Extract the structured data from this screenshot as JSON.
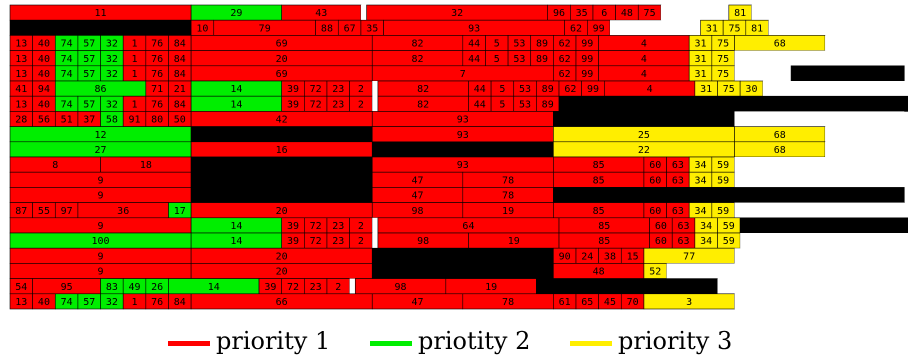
{
  "chart_data": {
    "type": "heatmap",
    "title": "",
    "xlabel": "",
    "ylabel": "",
    "colors": {
      "1": "#ff0000",
      "2": "#00ee00",
      "3": "#ffee00",
      "black": "#000000",
      "empty": "#ffffff"
    },
    "legend": [
      {
        "label": "priority 1",
        "color": "#ff0000"
      },
      {
        "label": "priotity 2",
        "color": "#00ee00"
      },
      {
        "label": "priority 3",
        "color": "#ffee00"
      }
    ],
    "rows": [
      [
        [
          "1",
          16,
          "11"
        ],
        [
          "2",
          8,
          "29"
        ],
        [
          "1",
          7,
          "43"
        ],
        [
          "w",
          0.5,
          ""
        ],
        [
          "1",
          16,
          "32"
        ],
        [
          "1",
          2,
          "96"
        ],
        [
          "1",
          2,
          "35"
        ],
        [
          "1",
          2,
          "6"
        ],
        [
          "1",
          2,
          "48"
        ],
        [
          "1",
          2,
          "75"
        ],
        [
          "w",
          6,
          ""
        ],
        [
          "3",
          2,
          "81"
        ],
        [
          "w",
          15,
          ""
        ]
      ],
      [
        [
          "k",
          16,
          ""
        ],
        [
          "1",
          2,
          "10"
        ],
        [
          "1",
          9,
          "79"
        ],
        [
          "1",
          2,
          "88"
        ],
        [
          "1",
          2,
          "67"
        ],
        [
          "1",
          2,
          "35"
        ],
        [
          "1",
          16,
          "93"
        ],
        [
          "1",
          2,
          "62"
        ],
        [
          "1",
          2,
          "99"
        ],
        [
          "w",
          8,
          ""
        ],
        [
          "3",
          2,
          "31"
        ],
        [
          "3",
          2,
          "75"
        ],
        [
          "3",
          2,
          "81"
        ],
        [
          "w",
          15,
          ""
        ]
      ],
      [
        [
          "1",
          2,
          "13"
        ],
        [
          "1",
          2,
          "40"
        ],
        [
          "2",
          2,
          "74"
        ],
        [
          "2",
          2,
          "57"
        ],
        [
          "2",
          2,
          "32"
        ],
        [
          "1",
          2,
          "1"
        ],
        [
          "1",
          2,
          "76"
        ],
        [
          "1",
          2,
          "84"
        ],
        [
          "1",
          16,
          "69"
        ],
        [
          "1",
          8,
          "82"
        ],
        [
          "1",
          2,
          "44"
        ],
        [
          "1",
          2,
          "5"
        ],
        [
          "1",
          2,
          "53"
        ],
        [
          "1",
          2,
          "89"
        ],
        [
          "1",
          2,
          "62"
        ],
        [
          "1",
          2,
          "99"
        ],
        [
          "1",
          8,
          "4"
        ],
        [
          "3",
          2,
          "31"
        ],
        [
          "3",
          2,
          "75"
        ],
        [
          "3",
          8,
          "68"
        ],
        [
          "w",
          7,
          ""
        ]
      ],
      [
        [
          "1",
          2,
          "13"
        ],
        [
          "1",
          2,
          "40"
        ],
        [
          "2",
          2,
          "74"
        ],
        [
          "2",
          2,
          "57"
        ],
        [
          "2",
          2,
          "32"
        ],
        [
          "1",
          2,
          "1"
        ],
        [
          "1",
          2,
          "76"
        ],
        [
          "1",
          2,
          "84"
        ],
        [
          "1",
          16,
          "20"
        ],
        [
          "1",
          8,
          "82"
        ],
        [
          "1",
          2,
          "44"
        ],
        [
          "1",
          2,
          "5"
        ],
        [
          "1",
          2,
          "53"
        ],
        [
          "1",
          2,
          "89"
        ],
        [
          "1",
          2,
          "62"
        ],
        [
          "1",
          2,
          "99"
        ],
        [
          "1",
          8,
          "4"
        ],
        [
          "3",
          2,
          "31"
        ],
        [
          "3",
          2,
          "75"
        ],
        [
          "w",
          15,
          ""
        ]
      ],
      [
        [
          "1",
          2,
          "13"
        ],
        [
          "1",
          2,
          "40"
        ],
        [
          "2",
          2,
          "74"
        ],
        [
          "2",
          2,
          "57"
        ],
        [
          "2",
          2,
          "32"
        ],
        [
          "1",
          2,
          "1"
        ],
        [
          "1",
          2,
          "76"
        ],
        [
          "1",
          2,
          "84"
        ],
        [
          "1",
          16,
          "69"
        ],
        [
          "1",
          16,
          "7"
        ],
        [
          "1",
          2,
          "62"
        ],
        [
          "1",
          2,
          "99"
        ],
        [
          "1",
          8,
          "4"
        ],
        [
          "3",
          2,
          "31"
        ],
        [
          "3",
          2,
          "75"
        ],
        [
          "w",
          5,
          ""
        ],
        [
          "k",
          10,
          ""
        ]
      ],
      [
        [
          "1",
          2,
          "41"
        ],
        [
          "1",
          2,
          "94"
        ],
        [
          "2",
          8,
          "86"
        ],
        [
          "1",
          2,
          "71"
        ],
        [
          "1",
          2,
          "21"
        ],
        [
          "2",
          8,
          "14"
        ],
        [
          "1",
          2,
          "39"
        ],
        [
          "1",
          2,
          "72"
        ],
        [
          "1",
          2,
          "23"
        ],
        [
          "1",
          2,
          "2"
        ],
        [
          "w",
          0.5,
          ""
        ],
        [
          "1",
          8,
          "82"
        ],
        [
          "1",
          2,
          "44"
        ],
        [
          "1",
          2,
          "5"
        ],
        [
          "1",
          2,
          "53"
        ],
        [
          "1",
          2,
          "89"
        ],
        [
          "1",
          2,
          "62"
        ],
        [
          "1",
          2,
          "99"
        ],
        [
          "1",
          8,
          "4"
        ],
        [
          "3",
          2,
          "31"
        ],
        [
          "3",
          2,
          "75"
        ],
        [
          "3",
          2,
          "30"
        ],
        [
          "w",
          13,
          ""
        ]
      ],
      [
        [
          "1",
          2,
          "13"
        ],
        [
          "1",
          2,
          "40"
        ],
        [
          "2",
          2,
          "74"
        ],
        [
          "2",
          2,
          "57"
        ],
        [
          "2",
          2,
          "32"
        ],
        [
          "1",
          2,
          "1"
        ],
        [
          "1",
          2,
          "76"
        ],
        [
          "1",
          2,
          "84"
        ],
        [
          "2",
          8,
          "14"
        ],
        [
          "1",
          2,
          "39"
        ],
        [
          "1",
          2,
          "72"
        ],
        [
          "1",
          2,
          "23"
        ],
        [
          "1",
          2,
          "2"
        ],
        [
          "w",
          0.5,
          ""
        ],
        [
          "1",
          8,
          "82"
        ],
        [
          "1",
          2,
          "44"
        ],
        [
          "1",
          2,
          "5"
        ],
        [
          "1",
          2,
          "53"
        ],
        [
          "1",
          2,
          "89"
        ],
        [
          "k",
          31,
          ""
        ]
      ],
      [
        [
          "1",
          2,
          "28"
        ],
        [
          "1",
          2,
          "56"
        ],
        [
          "1",
          2,
          "51"
        ],
        [
          "1",
          2,
          "37"
        ],
        [
          "2",
          2,
          "58"
        ],
        [
          "1",
          2,
          "91"
        ],
        [
          "1",
          2,
          "80"
        ],
        [
          "1",
          2,
          "50"
        ],
        [
          "1",
          16,
          "42"
        ],
        [
          "1",
          16,
          "93"
        ],
        [
          "k",
          16,
          ""
        ],
        [
          "w",
          15,
          ""
        ]
      ],
      [
        [
          "2",
          16,
          "12"
        ],
        [
          "k",
          16,
          ""
        ],
        [
          "1",
          16,
          "93"
        ],
        [
          "3",
          16,
          "25"
        ],
        [
          "3",
          8,
          "68"
        ],
        [
          "w",
          7,
          ""
        ]
      ],
      [
        [
          "2",
          16,
          "27"
        ],
        [
          "1",
          16,
          "16"
        ],
        [
          "k",
          16,
          ""
        ],
        [
          "3",
          16,
          "22"
        ],
        [
          "3",
          8,
          "68"
        ],
        [
          "w",
          7,
          ""
        ]
      ],
      [
        [
          "1",
          8,
          "8"
        ],
        [
          "1",
          8,
          "18"
        ],
        [
          "k",
          16,
          ""
        ],
        [
          "1",
          16,
          "93"
        ],
        [
          "1",
          8,
          "85"
        ],
        [
          "1",
          2,
          "60"
        ],
        [
          "1",
          2,
          "63"
        ],
        [
          "3",
          2,
          "34"
        ],
        [
          "3",
          2,
          "59"
        ],
        [
          "w",
          15,
          ""
        ]
      ],
      [
        [
          "1",
          16,
          "9"
        ],
        [
          "k",
          16,
          ""
        ],
        [
          "1",
          8,
          "47"
        ],
        [
          "1",
          8,
          "78"
        ],
        [
          "1",
          8,
          "85"
        ],
        [
          "1",
          2,
          "60"
        ],
        [
          "1",
          2,
          "63"
        ],
        [
          "3",
          2,
          "34"
        ],
        [
          "3",
          2,
          "59"
        ],
        [
          "w",
          15,
          ""
        ]
      ],
      [
        [
          "1",
          16,
          "9"
        ],
        [
          "k",
          16,
          ""
        ],
        [
          "1",
          8,
          "47"
        ],
        [
          "1",
          8,
          "78"
        ],
        [
          "k",
          31,
          ""
        ]
      ],
      [
        [
          "1",
          2,
          "87"
        ],
        [
          "1",
          2,
          "55"
        ],
        [
          "1",
          2,
          "97"
        ],
        [
          "1",
          8,
          "36"
        ],
        [
          "2",
          2,
          "17"
        ],
        [
          "1",
          16,
          "20"
        ],
        [
          "1",
          8,
          "98"
        ],
        [
          "1",
          8,
          "19"
        ],
        [
          "1",
          8,
          "85"
        ],
        [
          "1",
          2,
          "60"
        ],
        [
          "1",
          2,
          "63"
        ],
        [
          "3",
          2,
          "34"
        ],
        [
          "3",
          2,
          "59"
        ],
        [
          "w",
          15,
          ""
        ]
      ],
      [
        [
          "1",
          16,
          "9"
        ],
        [
          "2",
          8,
          "14"
        ],
        [
          "1",
          2,
          "39"
        ],
        [
          "1",
          2,
          "72"
        ],
        [
          "1",
          2,
          "23"
        ],
        [
          "1",
          2,
          "2"
        ],
        [
          "w",
          0.5,
          ""
        ],
        [
          "1",
          16,
          "64"
        ],
        [
          "1",
          8,
          "85"
        ],
        [
          "1",
          2,
          "60"
        ],
        [
          "1",
          2,
          "63"
        ],
        [
          "3",
          2,
          "34"
        ],
        [
          "3",
          2,
          "59"
        ],
        [
          "k",
          15,
          ""
        ]
      ],
      [
        [
          "2",
          16,
          "100"
        ],
        [
          "2",
          8,
          "14"
        ],
        [
          "1",
          2,
          "39"
        ],
        [
          "1",
          2,
          "72"
        ],
        [
          "1",
          2,
          "23"
        ],
        [
          "1",
          2,
          "2"
        ],
        [
          "w",
          0.5,
          ""
        ],
        [
          "1",
          8,
          "98"
        ],
        [
          "1",
          8,
          "19"
        ],
        [
          "1",
          8,
          "85"
        ],
        [
          "1",
          2,
          "60"
        ],
        [
          "1",
          2,
          "63"
        ],
        [
          "3",
          2,
          "34"
        ],
        [
          "3",
          2,
          "59"
        ],
        [
          "w",
          15,
          ""
        ]
      ],
      [
        [
          "1",
          16,
          "9"
        ],
        [
          "1",
          16,
          "20"
        ],
        [
          "k",
          16,
          ""
        ],
        [
          "1",
          2,
          "90"
        ],
        [
          "1",
          2,
          "24"
        ],
        [
          "1",
          2,
          "38"
        ],
        [
          "1",
          2,
          "15"
        ],
        [
          "3",
          8,
          "77"
        ],
        [
          "w",
          15,
          ""
        ]
      ],
      [
        [
          "1",
          16,
          "9"
        ],
        [
          "1",
          16,
          "20"
        ],
        [
          "k",
          16,
          ""
        ],
        [
          "1",
          8,
          "48"
        ],
        [
          "3",
          2,
          "52"
        ],
        [
          "w",
          21,
          ""
        ]
      ],
      [
        [
          "1",
          2,
          "54"
        ],
        [
          "1",
          6,
          "95"
        ],
        [
          "2",
          2,
          "83"
        ],
        [
          "2",
          2,
          "49"
        ],
        [
          "2",
          2,
          "26"
        ],
        [
          "2",
          8,
          "14"
        ],
        [
          "1",
          2,
          "39"
        ],
        [
          "1",
          2,
          "72"
        ],
        [
          "1",
          2,
          "23"
        ],
        [
          "1",
          2,
          "2"
        ],
        [
          "w",
          0.5,
          ""
        ],
        [
          "1",
          8,
          "98"
        ],
        [
          "1",
          8,
          "19"
        ],
        [
          "k",
          16,
          ""
        ],
        [
          "w",
          15,
          ""
        ]
      ],
      [
        [
          "1",
          2,
          "13"
        ],
        [
          "1",
          2,
          "40"
        ],
        [
          "2",
          2,
          "74"
        ],
        [
          "2",
          2,
          "57"
        ],
        [
          "2",
          2,
          "32"
        ],
        [
          "1",
          2,
          "1"
        ],
        [
          "1",
          2,
          "76"
        ],
        [
          "1",
          2,
          "84"
        ],
        [
          "1",
          16,
          "66"
        ],
        [
          "1",
          8,
          "47"
        ],
        [
          "1",
          8,
          "78"
        ],
        [
          "1",
          2,
          "61"
        ],
        [
          "1",
          2,
          "65"
        ],
        [
          "1",
          2,
          "45"
        ],
        [
          "1",
          2,
          "70"
        ],
        [
          "3",
          8,
          "3"
        ],
        [
          "w",
          15,
          ""
        ]
      ]
    ]
  }
}
